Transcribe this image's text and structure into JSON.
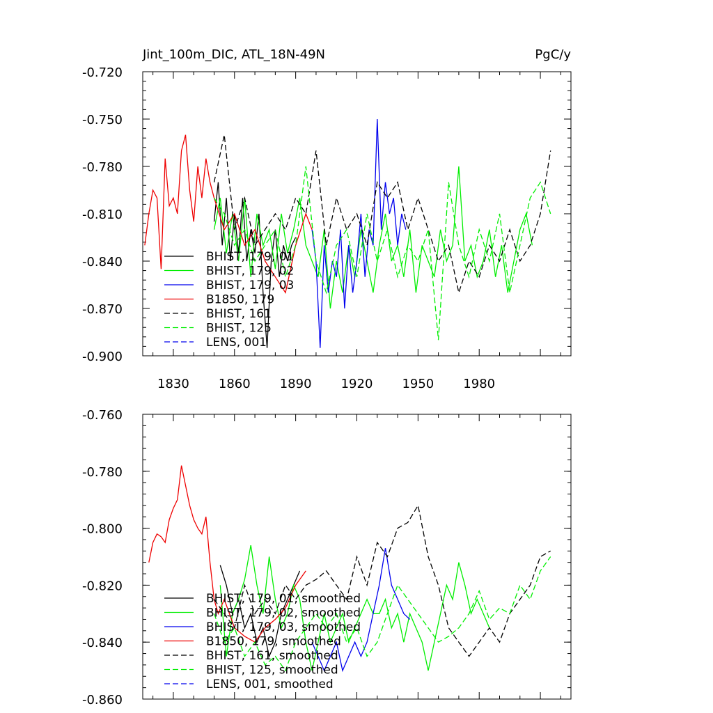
{
  "chart_data": [
    {
      "type": "line",
      "title_left": "Jint_100m_DIC, ATL_18N-49N",
      "title_right": "PgC/y",
      "xlabel": "",
      "ylabel": "",
      "xlim": [
        1815,
        2025
      ],
      "ylim": [
        -0.9,
        -0.72
      ],
      "yticks": [
        -0.72,
        -0.75,
        -0.78,
        -0.81,
        -0.84,
        -0.87,
        -0.9
      ],
      "ytick_labels": [
        "-0.720",
        "-0.750",
        "-0.780",
        "-0.810",
        "-0.840",
        "-0.870",
        "-0.900"
      ],
      "xticks": [
        1830,
        1860,
        1890,
        1920,
        1950,
        1980
      ],
      "xtick_labels": [
        "1830",
        "1860",
        "1890",
        "1920",
        "1950",
        "1980"
      ],
      "legend_position": "lower-left",
      "series": [
        {
          "name": "BHIST, 179, 01",
          "color": "#000000",
          "dash": "solid",
          "x": [
            1850,
            1852,
            1854,
            1856,
            1858,
            1860,
            1862,
            1864,
            1866,
            1868,
            1870,
            1872,
            1874,
            1876,
            1878,
            1880,
            1882,
            1884,
            1886,
            1888,
            1890
          ],
          "values": [
            -0.815,
            -0.79,
            -0.83,
            -0.8,
            -0.84,
            -0.81,
            -0.835,
            -0.8,
            -0.84,
            -0.82,
            -0.835,
            -0.81,
            -0.86,
            -0.895,
            -0.84,
            -0.82,
            -0.85,
            -0.83,
            -0.84,
            -0.83,
            -0.825
          ]
        },
        {
          "name": "BHIST, 179, 02",
          "color": "#00ee00",
          "dash": "solid",
          "x": [
            1850,
            1853,
            1856,
            1859,
            1862,
            1865,
            1868,
            1871,
            1874,
            1877,
            1880,
            1883,
            1886,
            1889,
            1892,
            1895,
            1898,
            1901,
            1904,
            1907,
            1910,
            1913,
            1916,
            1919,
            1922,
            1925,
            1928,
            1931,
            1934,
            1937,
            1940,
            1943,
            1946,
            1949,
            1952,
            1955,
            1958,
            1961,
            1964,
            1967,
            1970,
            1973,
            1976,
            1979,
            1982,
            1985,
            1988,
            1991,
            1994,
            1997,
            2000,
            2003,
            2006
          ],
          "values": [
            -0.82,
            -0.8,
            -0.835,
            -0.81,
            -0.84,
            -0.8,
            -0.85,
            -0.81,
            -0.83,
            -0.82,
            -0.845,
            -0.81,
            -0.835,
            -0.82,
            -0.8,
            -0.83,
            -0.84,
            -0.85,
            -0.82,
            -0.87,
            -0.84,
            -0.86,
            -0.83,
            -0.85,
            -0.82,
            -0.84,
            -0.86,
            -0.83,
            -0.81,
            -0.84,
            -0.83,
            -0.85,
            -0.82,
            -0.86,
            -0.83,
            -0.84,
            -0.85,
            -0.82,
            -0.84,
            -0.83,
            -0.78,
            -0.84,
            -0.83,
            -0.85,
            -0.84,
            -0.82,
            -0.85,
            -0.83,
            -0.86,
            -0.84,
            -0.82,
            -0.81,
            -0.83
          ]
        },
        {
          "name": "BHIST, 179, 03",
          "color": "#0000ee",
          "dash": "solid",
          "x": [
            1898,
            1900,
            1902,
            1904,
            1906,
            1908,
            1910,
            1912,
            1914,
            1916,
            1918,
            1920,
            1922,
            1924,
            1926,
            1928,
            1930,
            1932,
            1934,
            1936,
            1938,
            1940,
            1942,
            1944
          ],
          "values": [
            -0.82,
            -0.84,
            -0.895,
            -0.83,
            -0.86,
            -0.84,
            -0.85,
            -0.82,
            -0.87,
            -0.83,
            -0.86,
            -0.84,
            -0.81,
            -0.85,
            -0.82,
            -0.83,
            -0.75,
            -0.82,
            -0.79,
            -0.81,
            -0.8,
            -0.83,
            -0.81,
            -0.82
          ]
        },
        {
          "name": "B1850, 179",
          "color": "#ee0000",
          "dash": "solid",
          "x": [
            1816,
            1818,
            1820,
            1822,
            1824,
            1826,
            1828,
            1830,
            1832,
            1834,
            1836,
            1838,
            1840,
            1842,
            1844,
            1846,
            1848,
            1850,
            1855,
            1860,
            1865,
            1870,
            1875,
            1880,
            1885,
            1890,
            1895,
            1898
          ],
          "values": [
            -0.83,
            -0.81,
            -0.795,
            -0.8,
            -0.845,
            -0.775,
            -0.805,
            -0.8,
            -0.81,
            -0.77,
            -0.76,
            -0.795,
            -0.815,
            -0.78,
            -0.8,
            -0.775,
            -0.79,
            -0.8,
            -0.82,
            -0.81,
            -0.83,
            -0.82,
            -0.84,
            -0.85,
            -0.86,
            -0.83,
            -0.81,
            -0.82
          ]
        },
        {
          "name": "BHIST, 161",
          "color": "#000000",
          "dash": "dashed",
          "x": [
            1850,
            1855,
            1860,
            1865,
            1870,
            1875,
            1880,
            1885,
            1890,
            1895,
            1900,
            1905,
            1910,
            1915,
            1920,
            1925,
            1930,
            1935,
            1940,
            1945,
            1950,
            1955,
            1960,
            1965,
            1970,
            1975,
            1980,
            1985,
            1990,
            1995,
            2000,
            2005,
            2010,
            2015
          ],
          "values": [
            -0.79,
            -0.76,
            -0.82,
            -0.8,
            -0.83,
            -0.82,
            -0.81,
            -0.82,
            -0.8,
            -0.81,
            -0.77,
            -0.83,
            -0.8,
            -0.82,
            -0.81,
            -0.83,
            -0.79,
            -0.8,
            -0.79,
            -0.82,
            -0.8,
            -0.82,
            -0.84,
            -0.83,
            -0.86,
            -0.84,
            -0.85,
            -0.83,
            -0.84,
            -0.82,
            -0.84,
            -0.83,
            -0.81,
            -0.77
          ]
        },
        {
          "name": "BHIST, 125",
          "color": "#00ee00",
          "dash": "dashed",
          "x": [
            1850,
            1855,
            1860,
            1865,
            1870,
            1875,
            1880,
            1885,
            1890,
            1895,
            1900,
            1905,
            1910,
            1915,
            1920,
            1925,
            1930,
            1935,
            1940,
            1945,
            1950,
            1955,
            1960,
            1965,
            1970,
            1975,
            1980,
            1985,
            1990,
            1995,
            2000,
            2005,
            2010,
            2015
          ],
          "values": [
            -0.8,
            -0.81,
            -0.83,
            -0.82,
            -0.84,
            -0.83,
            -0.82,
            -0.85,
            -0.83,
            -0.78,
            -0.84,
            -0.86,
            -0.83,
            -0.82,
            -0.85,
            -0.81,
            -0.84,
            -0.82,
            -0.85,
            -0.83,
            -0.84,
            -0.82,
            -0.89,
            -0.79,
            -0.83,
            -0.85,
            -0.82,
            -0.84,
            -0.81,
            -0.86,
            -0.83,
            -0.8,
            -0.79,
            -0.81
          ]
        },
        {
          "name": "LENS, 001",
          "color": "#0000ee",
          "dash": "dashed",
          "x": [],
          "values": []
        }
      ]
    },
    {
      "type": "line",
      "xlim": [
        1815,
        2025
      ],
      "ylim": [
        -0.86,
        -0.76
      ],
      "yticks": [
        -0.76,
        -0.78,
        -0.8,
        -0.82,
        -0.84,
        -0.86
      ],
      "ytick_labels": [
        "-0.760",
        "-0.780",
        "-0.800",
        "-0.820",
        "-0.840",
        "-0.860"
      ],
      "legend_position": "lower-left",
      "series": [
        {
          "name": "BHIST, 179, 01, smoothed",
          "color": "#000000",
          "dash": "solid",
          "x": [
            1853,
            1856,
            1859,
            1862,
            1865,
            1868,
            1871,
            1874,
            1877,
            1880,
            1883,
            1886,
            1889,
            1892
          ],
          "values": [
            -0.813,
            -0.82,
            -0.83,
            -0.825,
            -0.835,
            -0.83,
            -0.84,
            -0.835,
            -0.845,
            -0.84,
            -0.83,
            -0.825,
            -0.82,
            -0.815
          ]
        },
        {
          "name": "BHIST, 179, 02, smoothed",
          "color": "#00ee00",
          "dash": "solid",
          "x": [
            1853,
            1856,
            1859,
            1862,
            1865,
            1868,
            1871,
            1874,
            1877,
            1880,
            1883,
            1886,
            1889,
            1892,
            1895,
            1898,
            1901,
            1904,
            1907,
            1910,
            1913,
            1916,
            1919,
            1922,
            1925,
            1928,
            1931,
            1934,
            1937,
            1940,
            1943,
            1946,
            1949,
            1952,
            1955,
            1958,
            1961,
            1964,
            1967,
            1970,
            1973,
            1976,
            1979,
            1982,
            1985
          ],
          "values": [
            -0.82,
            -0.845,
            -0.83,
            -0.825,
            -0.818,
            -0.806,
            -0.82,
            -0.83,
            -0.81,
            -0.825,
            -0.835,
            -0.83,
            -0.82,
            -0.825,
            -0.84,
            -0.85,
            -0.84,
            -0.83,
            -0.84,
            -0.835,
            -0.83,
            -0.84,
            -0.835,
            -0.83,
            -0.825,
            -0.83,
            -0.83,
            -0.825,
            -0.835,
            -0.83,
            -0.84,
            -0.83,
            -0.835,
            -0.84,
            -0.85,
            -0.84,
            -0.83,
            -0.82,
            -0.825,
            -0.812,
            -0.82,
            -0.83,
            -0.825,
            -0.83,
            -0.835
          ]
        },
        {
          "name": "BHIST, 179, 03, smoothed",
          "color": "#0000ee",
          "dash": "solid",
          "x": [
            1898,
            1901,
            1904,
            1907,
            1910,
            1913,
            1916,
            1919,
            1922,
            1925,
            1928,
            1931,
            1934,
            1937,
            1940,
            1943,
            1946
          ],
          "values": [
            -0.84,
            -0.845,
            -0.85,
            -0.845,
            -0.84,
            -0.85,
            -0.845,
            -0.84,
            -0.845,
            -0.84,
            -0.83,
            -0.82,
            -0.807,
            -0.82,
            -0.825,
            -0.83,
            -0.832
          ]
        },
        {
          "name": "B1850, 179, smoothed",
          "color": "#ee0000",
          "dash": "solid",
          "x": [
            1818,
            1820,
            1822,
            1824,
            1826,
            1828,
            1830,
            1832,
            1834,
            1836,
            1838,
            1840,
            1842,
            1844,
            1846,
            1848,
            1850,
            1852,
            1855,
            1860,
            1865,
            1870,
            1875,
            1880,
            1885,
            1890,
            1895
          ],
          "values": [
            -0.812,
            -0.805,
            -0.802,
            -0.803,
            -0.805,
            -0.797,
            -0.793,
            -0.79,
            -0.778,
            -0.785,
            -0.792,
            -0.797,
            -0.8,
            -0.802,
            -0.796,
            -0.812,
            -0.825,
            -0.83,
            -0.825,
            -0.835,
            -0.838,
            -0.84,
            -0.835,
            -0.832,
            -0.828,
            -0.82,
            -0.815
          ]
        },
        {
          "name": "BHIST, 161, smoothed",
          "color": "#000000",
          "dash": "dashed",
          "x": [
            1850,
            1855,
            1860,
            1865,
            1870,
            1875,
            1880,
            1885,
            1890,
            1895,
            1900,
            1905,
            1910,
            1915,
            1920,
            1925,
            1930,
            1935,
            1940,
            1945,
            1950,
            1955,
            1960,
            1965,
            1970,
            1975,
            1980,
            1985,
            1990,
            1995,
            2000,
            2005,
            2010,
            2015
          ],
          "values": [
            -0.825,
            -0.83,
            -0.835,
            -0.82,
            -0.83,
            -0.825,
            -0.83,
            -0.82,
            -0.825,
            -0.82,
            -0.818,
            -0.815,
            -0.82,
            -0.825,
            -0.81,
            -0.82,
            -0.805,
            -0.81,
            -0.8,
            -0.798,
            -0.792,
            -0.81,
            -0.82,
            -0.835,
            -0.84,
            -0.845,
            -0.84,
            -0.835,
            -0.84,
            -0.83,
            -0.825,
            -0.82,
            -0.81,
            -0.808
          ]
        },
        {
          "name": "BHIST, 125, smoothed",
          "color": "#00ee00",
          "dash": "dashed",
          "x": [
            1850,
            1855,
            1860,
            1865,
            1870,
            1875,
            1880,
            1885,
            1890,
            1895,
            1900,
            1905,
            1910,
            1915,
            1920,
            1925,
            1930,
            1935,
            1940,
            1945,
            1950,
            1955,
            1960,
            1965,
            1970,
            1975,
            1980,
            1985,
            1990,
            1995,
            2000,
            2005,
            2010,
            2015
          ],
          "values": [
            -0.83,
            -0.84,
            -0.835,
            -0.845,
            -0.84,
            -0.848,
            -0.845,
            -0.85,
            -0.84,
            -0.835,
            -0.83,
            -0.835,
            -0.83,
            -0.84,
            -0.835,
            -0.845,
            -0.84,
            -0.83,
            -0.82,
            -0.825,
            -0.83,
            -0.835,
            -0.84,
            -0.838,
            -0.835,
            -0.83,
            -0.822,
            -0.832,
            -0.828,
            -0.83,
            -0.82,
            -0.825,
            -0.815,
            -0.81
          ]
        },
        {
          "name": "LENS, 001, smoothed",
          "color": "#0000ee",
          "dash": "dashed",
          "x": [],
          "values": []
        }
      ]
    }
  ]
}
